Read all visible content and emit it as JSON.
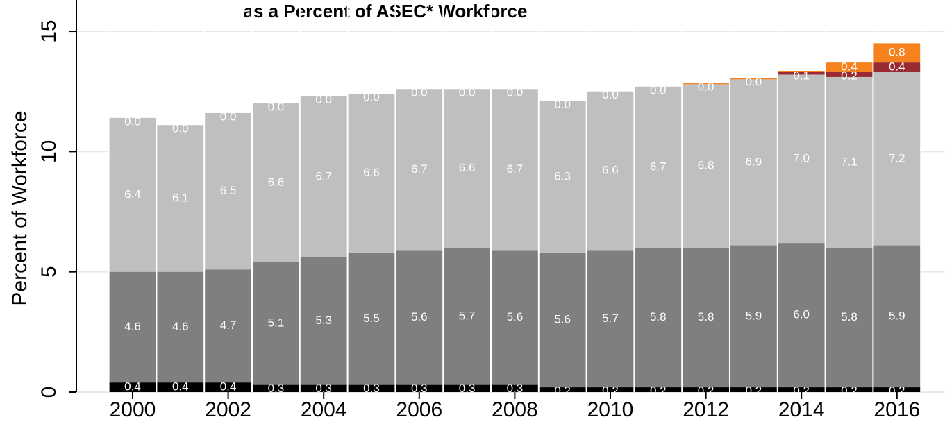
{
  "chart_data": {
    "type": "stacked_bar",
    "title": "as a Percent of ASEC* Workforce",
    "y_label": "Percent of Workforce",
    "categories": [
      "2000",
      null,
      "2002",
      null,
      "2004",
      null,
      "2006",
      null,
      "2008",
      null,
      "2010",
      null,
      "2012",
      null,
      "2014",
      null,
      "2016"
    ],
    "ylim": [
      0,
      16.3
    ],
    "yticks": [
      0,
      5,
      10,
      15
    ],
    "grid": true,
    "series": [
      {
        "color": "#000000",
        "values": [
          0.4,
          0.4,
          0.4,
          0.3,
          0.3,
          0.3,
          0.3,
          0.3,
          0.3,
          0.2,
          0.2,
          0.2,
          0.2,
          0.2,
          0.2,
          0.2,
          0.2
        ],
        "value_labels": [
          "0.4",
          "0.4",
          "0.4",
          "0.3",
          "0.3",
          "0.3",
          "0.3",
          "0.3",
          "0.3",
          "0.2",
          "0.2",
          "0.2",
          "0.2",
          "0.2",
          "0.2",
          "0.2",
          "0.2"
        ]
      },
      {
        "color": "#7f7f7f",
        "values": [
          4.6,
          4.6,
          4.7,
          5.1,
          5.3,
          5.5,
          5.6,
          5.7,
          5.6,
          5.6,
          5.7,
          5.8,
          5.8,
          5.9,
          6.0,
          5.8,
          5.9
        ],
        "value_labels": [
          "4.6",
          "4.6",
          "4.7",
          "5.1",
          "5.3",
          "5.5",
          "5.6",
          "5.7",
          "5.6",
          "5.6",
          "5.7",
          "5.8",
          "5.8",
          "5.9",
          "6.0",
          "5.8",
          "5.9"
        ]
      },
      {
        "color": "#bfbfbf",
        "values": [
          6.4,
          6.1,
          6.5,
          6.6,
          6.7,
          6.6,
          6.7,
          6.6,
          6.7,
          6.3,
          6.6,
          6.7,
          6.8,
          6.9,
          7.0,
          7.1,
          7.2
        ],
        "value_labels": [
          "6.4",
          "6.1",
          "6.5",
          "6.6",
          "6.7",
          "6.6",
          "6.7",
          "6.6",
          "6.7",
          "6.3",
          "6.6",
          "6.7",
          "6.8",
          "6.9",
          "7.0",
          "7.1",
          "7.2"
        ]
      },
      {
        "color": "#982a31",
        "values": [
          0,
          0,
          0,
          0,
          0,
          0,
          0,
          0,
          0,
          0,
          0,
          0,
          0,
          0,
          0.1,
          0.2,
          0.4
        ],
        "value_labels": [
          "0.0",
          "0.0",
          "0.0",
          "0.0",
          "0.0",
          "0.0",
          "0.0",
          "0.0",
          "0.0",
          "0.0",
          "0.0",
          "0.0",
          null,
          null,
          "0.1",
          "0.2",
          "0.4"
        ]
      },
      {
        "color": "#f5821f",
        "values": [
          0,
          0,
          0,
          0,
          0,
          0,
          0,
          0,
          0,
          0,
          0,
          0,
          0.04,
          0.04,
          0.04,
          0.4,
          0.8
        ],
        "value_labels": [
          null,
          null,
          null,
          null,
          null,
          null,
          null,
          null,
          null,
          null,
          null,
          null,
          "0.0",
          "0.0",
          null,
          "0.4",
          "0.8"
        ]
      }
    ]
  }
}
